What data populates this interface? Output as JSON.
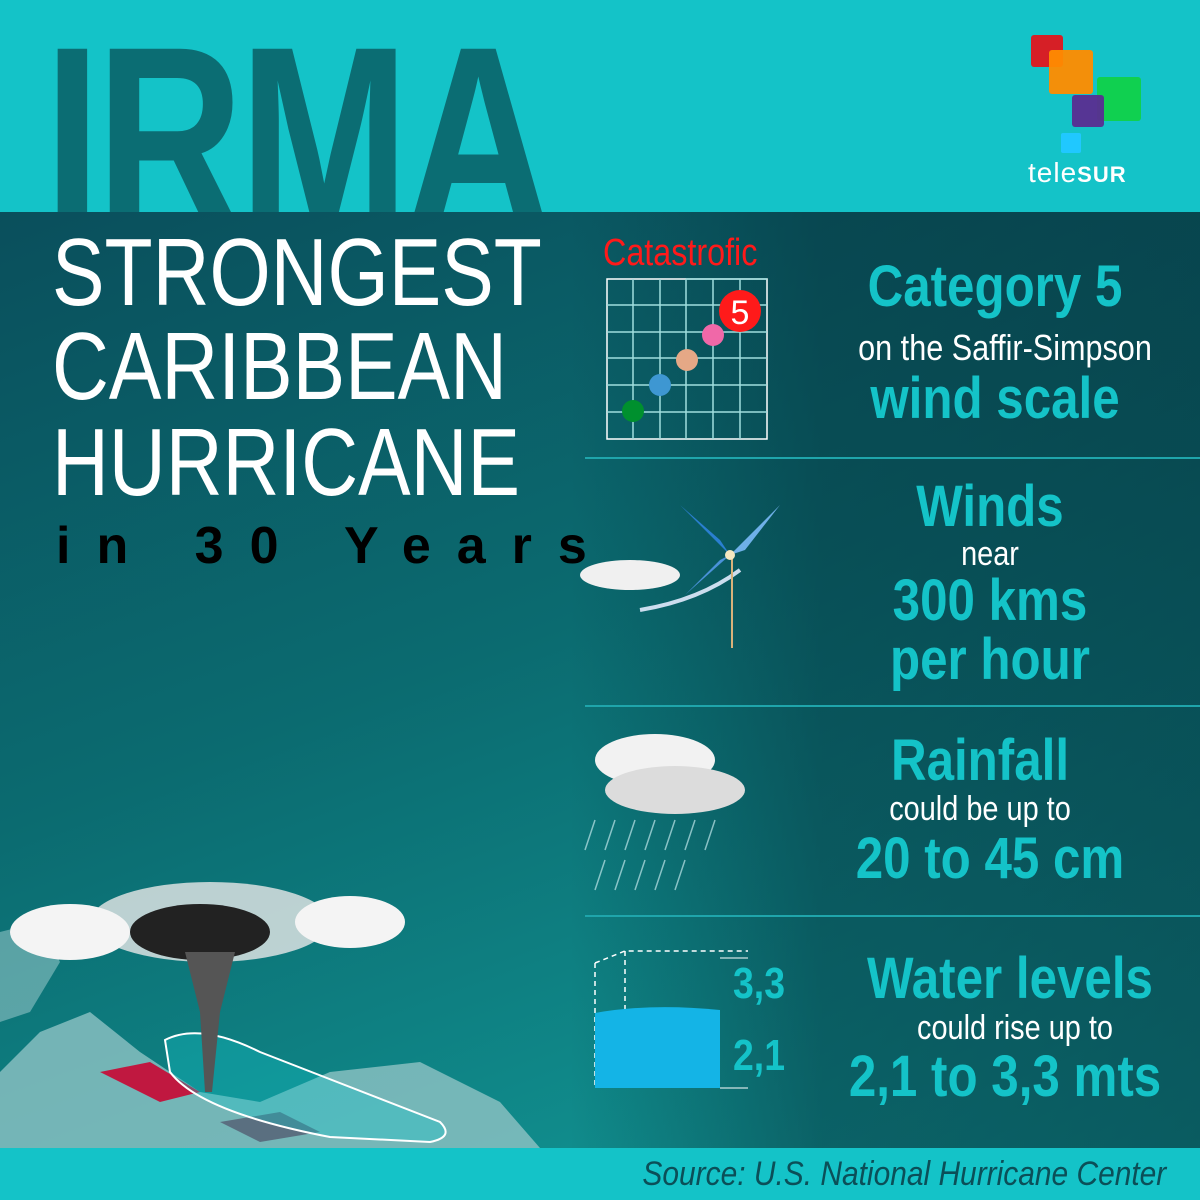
{
  "header": {
    "title": "IRMA",
    "logo_text_light": "tele",
    "logo_text_bold": "SUR"
  },
  "headline": {
    "line1": "STRONGEST",
    "line2": "CARIBBEAN",
    "line3": "HURRICANE",
    "line4": "in 30 Years"
  },
  "category": {
    "chart_label": "Catastrofic",
    "badge": "5",
    "title": "Category 5",
    "subtitle": "on the Saffir-Simpson",
    "title2": "wind scale",
    "dot_colors": [
      "#00902e",
      "#3e97d2",
      "#e5a886",
      "#f068a8"
    ]
  },
  "winds": {
    "title": "Winds",
    "subtitle": "near",
    "value": "300 kms",
    "value2": "per hour"
  },
  "rainfall": {
    "title": "Rainfall",
    "subtitle": "could be up to",
    "value": "20 to 45 cm"
  },
  "water": {
    "title": "Water levels",
    "subtitle": "could rise up to",
    "value": "2,1 to 3,3 mts",
    "mark_high": "3,3",
    "mark_low": "2,1"
  },
  "footer": {
    "source": "Source: U.S. National Hurricane Center"
  },
  "colors": {
    "accent": "#14c3c8",
    "alert": "#ff1a1a",
    "dark": "#0b5a63"
  }
}
